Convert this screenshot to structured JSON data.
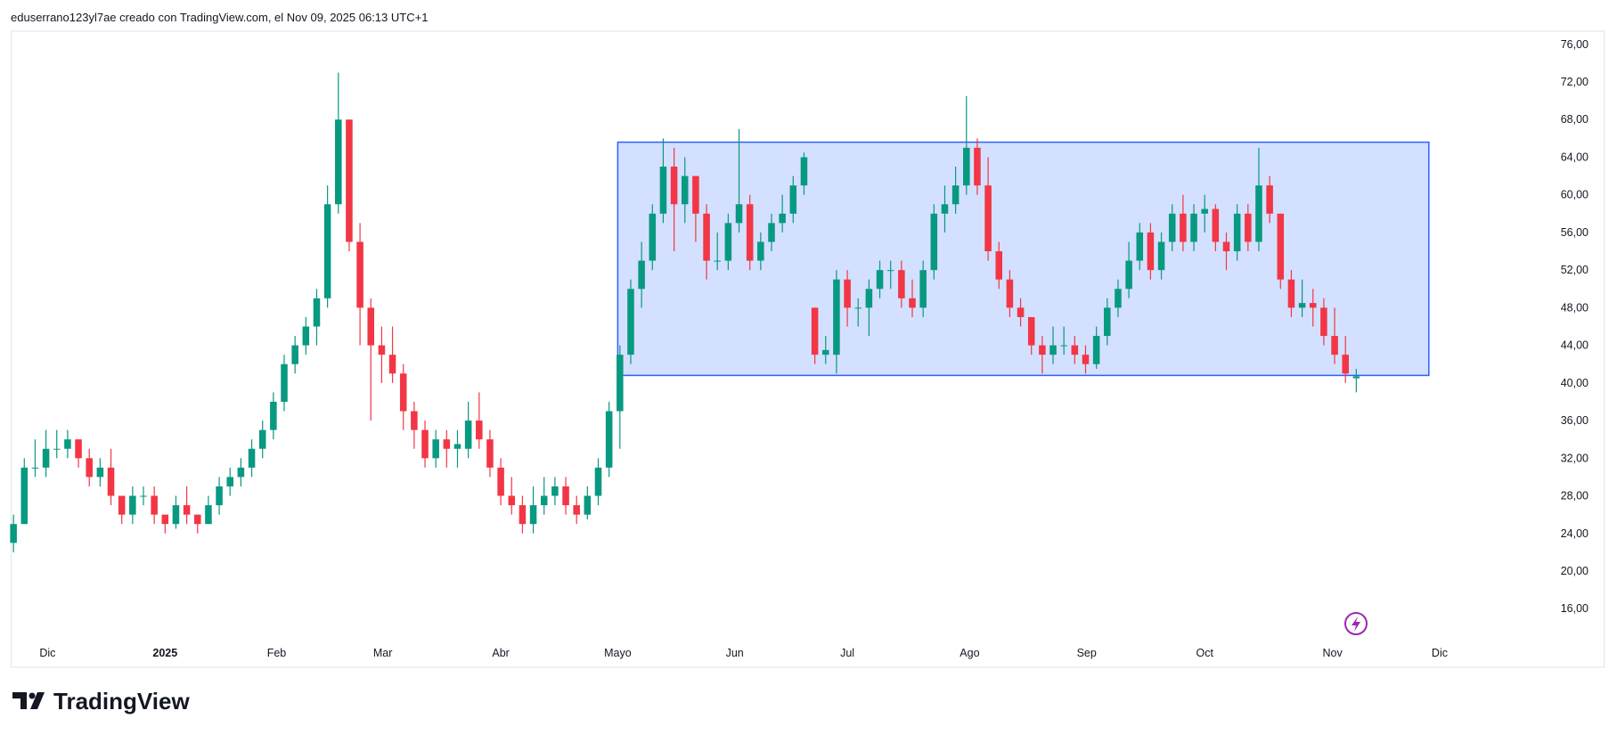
{
  "header": "eduserrano123yl7ae creado con TradingView.com, el Nov 09, 2025 06:13 UTC+1",
  "logo": "TradingView",
  "chart_data": {
    "type": "candlestick",
    "up_color": "#089981",
    "down_color": "#f23645",
    "xlim": [
      -0.2,
      141.6
    ],
    "ylim": [
      12.8,
      77.4
    ],
    "xticks": [
      {
        "value": 3.15,
        "label": "Dic"
      },
      {
        "value": 14,
        "label": "2025"
      },
      {
        "value": 24.3,
        "label": "Feb"
      },
      {
        "value": 34.1,
        "label": "Mar"
      },
      {
        "value": 45,
        "label": "Abr"
      },
      {
        "value": 55.8,
        "label": "Mayo"
      },
      {
        "value": 66.6,
        "label": "Jun"
      },
      {
        "value": 77,
        "label": "Jul"
      },
      {
        "value": 88.3,
        "label": "Ago"
      },
      {
        "value": 99.1,
        "label": "Sep"
      },
      {
        "value": 110,
        "label": "Oct"
      },
      {
        "value": 121.8,
        "label": "Nov"
      },
      {
        "value": 131.7,
        "label": "Dic"
      }
    ],
    "yticks": [
      {
        "value": 16,
        "label": "16,00"
      },
      {
        "value": 20,
        "label": "20,00"
      },
      {
        "value": 24,
        "label": "24,00"
      },
      {
        "value": 28,
        "label": "28,00"
      },
      {
        "value": 32,
        "label": "32,00"
      },
      {
        "value": 36,
        "label": "36,00"
      },
      {
        "value": 40,
        "label": "40,00"
      },
      {
        "value": 44,
        "label": "44,00"
      },
      {
        "value": 48,
        "label": "48,00"
      },
      {
        "value": 52,
        "label": "52,00"
      },
      {
        "value": 56,
        "label": "56,00"
      },
      {
        "value": 60,
        "label": "60,00"
      },
      {
        "value": 64,
        "label": "64,00"
      },
      {
        "value": 68,
        "label": "68,00"
      },
      {
        "value": 72,
        "label": "72,00"
      },
      {
        "value": 76,
        "label": "76,00"
      }
    ],
    "grid": false,
    "shapes": [
      {
        "x": [
          55.8,
          130.7
        ],
        "y": [
          40.8,
          65.6
        ],
        "fill": "rgba(41,98,255,0.2)",
        "color": "#2962ff"
      }
    ],
    "ohlc": [
      [
        23,
        26,
        22,
        25
      ],
      [
        25,
        32,
        25,
        31
      ],
      [
        31,
        34,
        30,
        31
      ],
      [
        31,
        35,
        30,
        33
      ],
      [
        33,
        35,
        32,
        33
      ],
      [
        33,
        35,
        32,
        34
      ],
      [
        34,
        34,
        31,
        32
      ],
      [
        32,
        33,
        29,
        30
      ],
      [
        30,
        32,
        29,
        31
      ],
      [
        31,
        33,
        27,
        28
      ],
      [
        28,
        28,
        25,
        26
      ],
      [
        26,
        29,
        25,
        28
      ],
      [
        28,
        29,
        27,
        28
      ],
      [
        28,
        29,
        25,
        26
      ],
      [
        26,
        26,
        24,
        25
      ],
      [
        25,
        28,
        24.5,
        27
      ],
      [
        27,
        29,
        25,
        26
      ],
      [
        26,
        26,
        24,
        25
      ],
      [
        25,
        28,
        25,
        27
      ],
      [
        27,
        30,
        26,
        29
      ],
      [
        29,
        31,
        28,
        30
      ],
      [
        30,
        32,
        29,
        31
      ],
      [
        31,
        34,
        30,
        33
      ],
      [
        33,
        36,
        32,
        35
      ],
      [
        35,
        39,
        34,
        38
      ],
      [
        38,
        43,
        37,
        42
      ],
      [
        42,
        45,
        41,
        44
      ],
      [
        44,
        47,
        43,
        46
      ],
      [
        46,
        50,
        44,
        49
      ],
      [
        49,
        61,
        48,
        59
      ],
      [
        59,
        73,
        58,
        68
      ],
      [
        68,
        68,
        54,
        55
      ],
      [
        55,
        57,
        44,
        48
      ],
      [
        48,
        49,
        36,
        44
      ],
      [
        44,
        46,
        40,
        43
      ],
      [
        43,
        46,
        40,
        41
      ],
      [
        41,
        42,
        35,
        37
      ],
      [
        37,
        38,
        33,
        35
      ],
      [
        35,
        36,
        31,
        32
      ],
      [
        32,
        35,
        31,
        34
      ],
      [
        34,
        35,
        31,
        33
      ],
      [
        33,
        35,
        31,
        33.5
      ],
      [
        33,
        38,
        32,
        36
      ],
      [
        36,
        39,
        33,
        34
      ],
      [
        34,
        35,
        30,
        31
      ],
      [
        31,
        32,
        27,
        28
      ],
      [
        28,
        30,
        26,
        27
      ],
      [
        27,
        28,
        24,
        25
      ],
      [
        25,
        29,
        24,
        27
      ],
      [
        27,
        30,
        26,
        28
      ],
      [
        28,
        30,
        27,
        29
      ],
      [
        29,
        30,
        26,
        27
      ],
      [
        27,
        28,
        25,
        26
      ],
      [
        26,
        29,
        25.5,
        28
      ],
      [
        28,
        32,
        27,
        31
      ],
      [
        31,
        38,
        30,
        37
      ],
      [
        37,
        44,
        33,
        43
      ],
      [
        43,
        51,
        42,
        50
      ],
      [
        50,
        55,
        48,
        53
      ],
      [
        53,
        59,
        52,
        58
      ],
      [
        58,
        66,
        57,
        63
      ],
      [
        63,
        65,
        54,
        59
      ],
      [
        59,
        64,
        57,
        62
      ],
      [
        62,
        62,
        55,
        58
      ],
      [
        58,
        59,
        51,
        53
      ],
      [
        53,
        56,
        52,
        53
      ],
      [
        53,
        58,
        52,
        57
      ],
      [
        57,
        67,
        56,
        59
      ],
      [
        59,
        60,
        52,
        53
      ],
      [
        53,
        56,
        52,
        55
      ],
      [
        55,
        58,
        54,
        57
      ],
      [
        57,
        60,
        56,
        58
      ],
      [
        58,
        62,
        57,
        61
      ],
      [
        61,
        64.5,
        60,
        64
      ],
      [
        48,
        48,
        42,
        43
      ],
      [
        43,
        45,
        42,
        43.5
      ],
      [
        43,
        52,
        41,
        51
      ],
      [
        51,
        52,
        46,
        48
      ],
      [
        48,
        49,
        46,
        48
      ],
      [
        48,
        51,
        45,
        50
      ],
      [
        50,
        53,
        49,
        52
      ],
      [
        52,
        53,
        50,
        52
      ],
      [
        52,
        53,
        48,
        49
      ],
      [
        49,
        51,
        47,
        48
      ],
      [
        48,
        53,
        47,
        52
      ],
      [
        52,
        59,
        51,
        58
      ],
      [
        58,
        61,
        56,
        59
      ],
      [
        59,
        63,
        58,
        61
      ],
      [
        61,
        70.5,
        60,
        65
      ],
      [
        65,
        66,
        60,
        61
      ],
      [
        61,
        64,
        53,
        54
      ],
      [
        54,
        55,
        50,
        51
      ],
      [
        51,
        52,
        47,
        48
      ],
      [
        48,
        49,
        46,
        47
      ],
      [
        47,
        47,
        43,
        44
      ],
      [
        44,
        45,
        41,
        43
      ],
      [
        43,
        46,
        42,
        44
      ],
      [
        44,
        46,
        43,
        44
      ],
      [
        44,
        45,
        42,
        43
      ],
      [
        43,
        44,
        41,
        42
      ],
      [
        42,
        46,
        41.5,
        45
      ],
      [
        45,
        49,
        44,
        48
      ],
      [
        48,
        51,
        47,
        50
      ],
      [
        50,
        55,
        49,
        53
      ],
      [
        53,
        57,
        52,
        56
      ],
      [
        56,
        57,
        51,
        52
      ],
      [
        52,
        56,
        51,
        55
      ],
      [
        55,
        59,
        54,
        58
      ],
      [
        58,
        60,
        54,
        55
      ],
      [
        55,
        59,
        54,
        58
      ],
      [
        58,
        60,
        56,
        58.5
      ],
      [
        58.5,
        59,
        54,
        55
      ],
      [
        55,
        56,
        52,
        54
      ],
      [
        54,
        59,
        53,
        58
      ],
      [
        58,
        59,
        54,
        55
      ],
      [
        55,
        65,
        54,
        61
      ],
      [
        61,
        62,
        57,
        58
      ],
      [
        58,
        58,
        50,
        51
      ],
      [
        51,
        52,
        47,
        48
      ],
      [
        48,
        51,
        47,
        48.5
      ],
      [
        48.5,
        50,
        46,
        48
      ],
      [
        48,
        49,
        44,
        45
      ],
      [
        45,
        48,
        42,
        43
      ],
      [
        43,
        45,
        40,
        41
      ],
      [
        40.5,
        41.5,
        39,
        40.7
      ]
    ]
  }
}
